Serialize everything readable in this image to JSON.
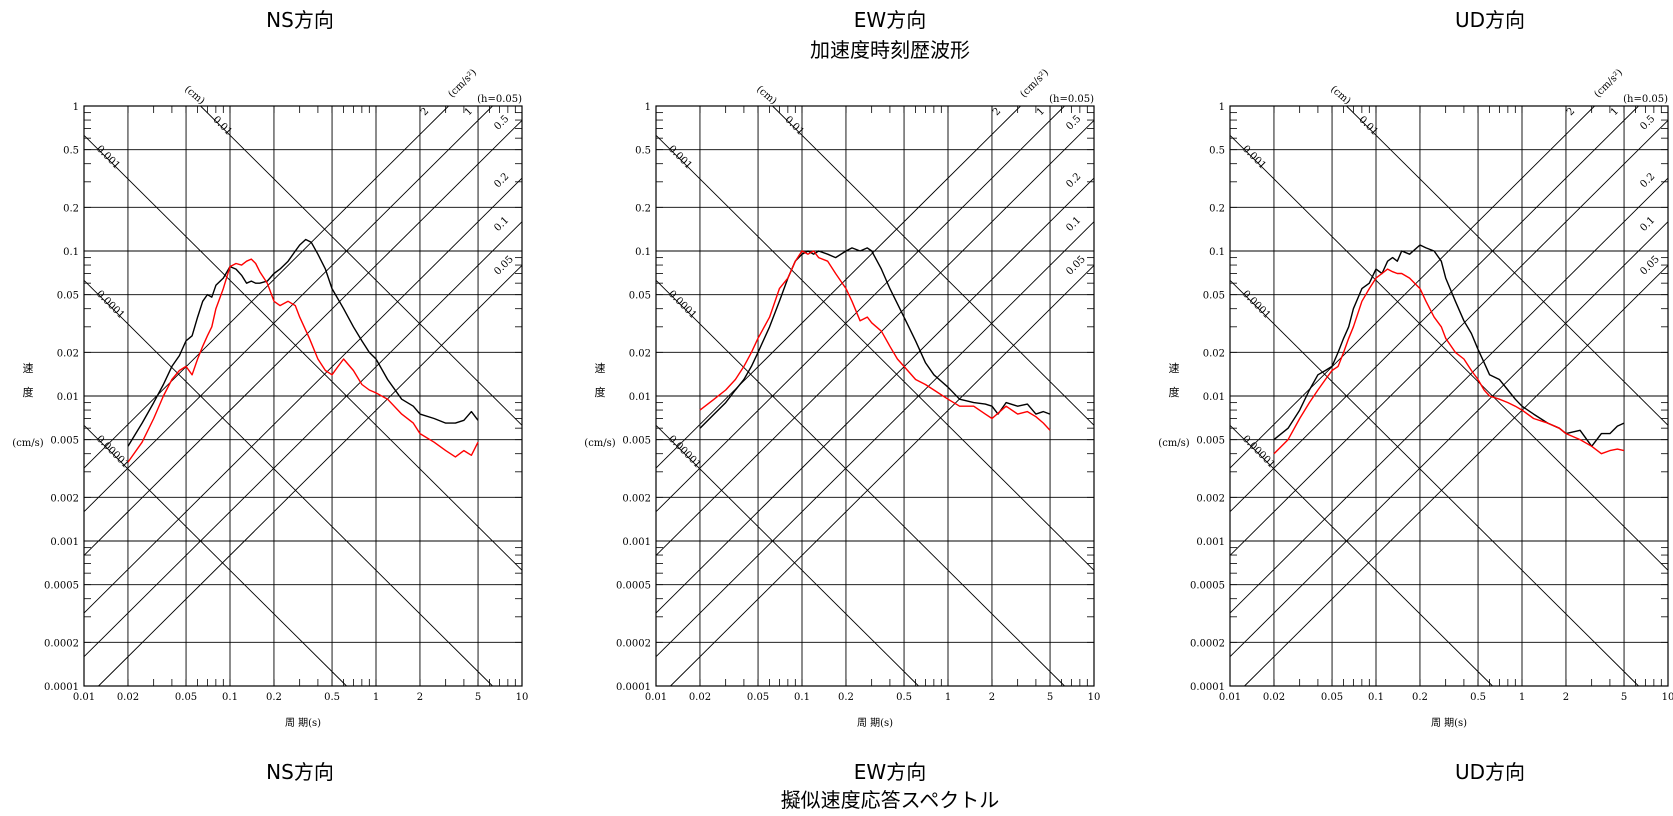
{
  "captions": {
    "top_ns": "NS方向",
    "top_ew": "EW方向",
    "top_ud": "UD方向",
    "top_center": "加速度時刻歴波形",
    "bottom_ns": "NS方向",
    "bottom_ew": "EW方向",
    "bottom_ud": "UD方向",
    "bottom_center": "擬似速度応答スペクトル"
  },
  "common": {
    "xlabel": "周 期(s)",
    "ylabel_chars": [
      "速",
      "度"
    ],
    "ylabel_unit": "(cm/s)",
    "disp_unit": "(cm)",
    "acc_unit": "(cm/s²)",
    "damping": "(h=0.05)",
    "xlim": [
      0.01,
      10
    ],
    "ylim": [
      0.0001,
      1
    ],
    "xtick_values": [
      0.01,
      0.02,
      0.05,
      0.1,
      0.2,
      0.5,
      1,
      2,
      5,
      10
    ],
    "xtick_labels": [
      "0.01",
      "0.02",
      "0.05",
      "0.1",
      "0.2",
      "0.5",
      "1",
      "2",
      "5",
      "10"
    ],
    "ytick_values": [
      1,
      0.5,
      0.2,
      0.1,
      0.05,
      0.02,
      0.01,
      0.005,
      0.002,
      0.001,
      0.0005,
      0.0002,
      0.0001
    ],
    "ytick_labels": [
      "1",
      "0.5",
      "0.2",
      "0.1",
      "0.05",
      "0.02",
      "0.01",
      "0.005",
      "0.002",
      "0.001",
      "0.0005",
      "0.0002",
      "0.0001"
    ],
    "disp_lines": [
      0.01,
      0.001,
      0.0001,
      1e-05
    ],
    "disp_labels": [
      "0.01",
      "0.001",
      "0.0001",
      "0.00001"
    ],
    "acc_lines": [
      2,
      1,
      0.5,
      0.2,
      0.1,
      0.05
    ],
    "acc_labels": [
      "2",
      "1",
      "0.5",
      "0.2",
      "0.1",
      "0.05"
    ]
  },
  "chart_data": [
    {
      "type": "line",
      "scale": "log-log tripartite",
      "xlim": [
        0.01,
        10
      ],
      "ylim": [
        0.0001,
        1
      ],
      "series": [
        {
          "color": "#000000",
          "x": [
            0.02,
            0.025,
            0.03,
            0.035,
            0.04,
            0.045,
            0.05,
            0.055,
            0.06,
            0.065,
            0.07,
            0.075,
            0.08,
            0.09,
            0.1,
            0.11,
            0.12,
            0.13,
            0.14,
            0.15,
            0.16,
            0.18,
            0.2,
            0.22,
            0.25,
            0.28,
            0.3,
            0.33,
            0.36,
            0.4,
            0.45,
            0.5,
            0.6,
            0.7,
            0.8,
            0.9,
            1.0,
            1.2,
            1.5,
            1.8,
            2,
            2.5,
            3,
            3.5,
            4,
            4.5,
            5
          ],
          "y": [
            0.0045,
            0.0065,
            0.009,
            0.012,
            0.016,
            0.019,
            0.024,
            0.026,
            0.035,
            0.045,
            0.05,
            0.048,
            0.058,
            0.065,
            0.078,
            0.075,
            0.068,
            0.06,
            0.062,
            0.06,
            0.06,
            0.062,
            0.07,
            0.075,
            0.085,
            0.1,
            0.11,
            0.12,
            0.115,
            0.095,
            0.075,
            0.055,
            0.04,
            0.03,
            0.024,
            0.02,
            0.018,
            0.013,
            0.0095,
            0.0085,
            0.0075,
            0.007,
            0.0065,
            0.0065,
            0.0068,
            0.0078,
            0.0068
          ]
        },
        {
          "color": "#ff0000",
          "x": [
            0.02,
            0.025,
            0.03,
            0.035,
            0.04,
            0.045,
            0.05,
            0.055,
            0.06,
            0.065,
            0.07,
            0.075,
            0.08,
            0.09,
            0.1,
            0.11,
            0.12,
            0.13,
            0.14,
            0.15,
            0.16,
            0.18,
            0.2,
            0.22,
            0.25,
            0.28,
            0.3,
            0.35,
            0.4,
            0.45,
            0.5,
            0.55,
            0.6,
            0.7,
            0.8,
            0.9,
            1.0,
            1.2,
            1.5,
            1.8,
            2,
            2.5,
            3,
            3.5,
            4,
            4.5,
            5
          ],
          "y": [
            0.0035,
            0.0048,
            0.007,
            0.01,
            0.013,
            0.015,
            0.016,
            0.014,
            0.018,
            0.022,
            0.026,
            0.03,
            0.04,
            0.055,
            0.078,
            0.082,
            0.08,
            0.085,
            0.088,
            0.082,
            0.072,
            0.06,
            0.045,
            0.042,
            0.045,
            0.042,
            0.035,
            0.025,
            0.018,
            0.015,
            0.014,
            0.016,
            0.018,
            0.015,
            0.012,
            0.011,
            0.0105,
            0.0095,
            0.0075,
            0.0065,
            0.0055,
            0.0048,
            0.0042,
            0.0038,
            0.0042,
            0.0039,
            0.0048
          ]
        }
      ]
    },
    {
      "type": "line",
      "scale": "log-log tripartite",
      "xlim": [
        0.01,
        10
      ],
      "ylim": [
        0.0001,
        1
      ],
      "series": [
        {
          "color": "#000000",
          "x": [
            0.02,
            0.025,
            0.03,
            0.035,
            0.04,
            0.045,
            0.05,
            0.06,
            0.07,
            0.08,
            0.09,
            0.1,
            0.11,
            0.12,
            0.13,
            0.15,
            0.17,
            0.2,
            0.22,
            0.25,
            0.28,
            0.3,
            0.35,
            0.4,
            0.5,
            0.6,
            0.7,
            0.8,
            1.0,
            1.2,
            1.5,
            1.8,
            2,
            2.2,
            2.5,
            3,
            3.5,
            4,
            4.5,
            5
          ],
          "y": [
            0.006,
            0.0075,
            0.009,
            0.011,
            0.013,
            0.016,
            0.02,
            0.03,
            0.045,
            0.065,
            0.085,
            0.095,
            0.1,
            0.095,
            0.1,
            0.095,
            0.09,
            0.1,
            0.105,
            0.1,
            0.105,
            0.1,
            0.075,
            0.055,
            0.035,
            0.024,
            0.017,
            0.014,
            0.0115,
            0.0095,
            0.009,
            0.0088,
            0.0085,
            0.0075,
            0.009,
            0.0085,
            0.0088,
            0.0075,
            0.0078,
            0.0075
          ]
        },
        {
          "color": "#ff0000",
          "x": [
            0.02,
            0.025,
            0.03,
            0.035,
            0.04,
            0.045,
            0.05,
            0.06,
            0.07,
            0.08,
            0.09,
            0.1,
            0.11,
            0.12,
            0.13,
            0.15,
            0.17,
            0.2,
            0.22,
            0.25,
            0.28,
            0.3,
            0.35,
            0.4,
            0.45,
            0.5,
            0.6,
            0.7,
            0.8,
            1.0,
            1.2,
            1.5,
            1.8,
            2,
            2.5,
            3,
            3.5,
            4,
            4.5,
            5
          ],
          "y": [
            0.008,
            0.0095,
            0.011,
            0.013,
            0.016,
            0.02,
            0.025,
            0.035,
            0.055,
            0.065,
            0.085,
            0.1,
            0.095,
            0.1,
            0.09,
            0.085,
            0.07,
            0.055,
            0.045,
            0.033,
            0.035,
            0.032,
            0.028,
            0.022,
            0.018,
            0.016,
            0.013,
            0.012,
            0.011,
            0.0095,
            0.0085,
            0.0085,
            0.0075,
            0.007,
            0.0085,
            0.0075,
            0.0078,
            0.0072,
            0.0065,
            0.0058
          ]
        }
      ]
    },
    {
      "type": "line",
      "scale": "log-log tripartite",
      "xlim": [
        0.01,
        10
      ],
      "ylim": [
        0.0001,
        1
      ],
      "series": [
        {
          "color": "#000000",
          "x": [
            0.02,
            0.025,
            0.03,
            0.035,
            0.04,
            0.045,
            0.05,
            0.055,
            0.06,
            0.065,
            0.07,
            0.08,
            0.09,
            0.1,
            0.11,
            0.12,
            0.13,
            0.14,
            0.15,
            0.17,
            0.2,
            0.22,
            0.25,
            0.28,
            0.3,
            0.35,
            0.4,
            0.45,
            0.5,
            0.55,
            0.6,
            0.7,
            0.8,
            0.9,
            1.0,
            1.2,
            1.5,
            1.8,
            2,
            2.5,
            3,
            3.5,
            4,
            4.5,
            5
          ],
          "y": [
            0.005,
            0.006,
            0.008,
            0.011,
            0.014,
            0.015,
            0.016,
            0.02,
            0.025,
            0.03,
            0.04,
            0.055,
            0.06,
            0.075,
            0.07,
            0.085,
            0.09,
            0.085,
            0.1,
            0.095,
            0.11,
            0.105,
            0.1,
            0.085,
            0.065,
            0.045,
            0.033,
            0.027,
            0.021,
            0.017,
            0.014,
            0.013,
            0.011,
            0.0095,
            0.0085,
            0.0075,
            0.0065,
            0.006,
            0.0055,
            0.0058,
            0.0045,
            0.0055,
            0.0055,
            0.0062,
            0.0065
          ]
        },
        {
          "color": "#ff0000",
          "x": [
            0.02,
            0.025,
            0.03,
            0.035,
            0.04,
            0.045,
            0.05,
            0.055,
            0.06,
            0.065,
            0.07,
            0.08,
            0.09,
            0.1,
            0.11,
            0.12,
            0.13,
            0.14,
            0.15,
            0.17,
            0.2,
            0.22,
            0.25,
            0.28,
            0.3,
            0.35,
            0.4,
            0.45,
            0.5,
            0.55,
            0.6,
            0.7,
            0.8,
            0.9,
            1.0,
            1.2,
            1.5,
            1.8,
            2,
            2.5,
            3,
            3.5,
            4,
            4.5,
            5
          ],
          "y": [
            0.004,
            0.005,
            0.007,
            0.009,
            0.011,
            0.013,
            0.015,
            0.016,
            0.02,
            0.025,
            0.03,
            0.045,
            0.055,
            0.065,
            0.07,
            0.075,
            0.072,
            0.07,
            0.07,
            0.065,
            0.055,
            0.045,
            0.035,
            0.03,
            0.025,
            0.02,
            0.018,
            0.015,
            0.013,
            0.011,
            0.01,
            0.0095,
            0.009,
            0.0085,
            0.008,
            0.007,
            0.0065,
            0.006,
            0.0055,
            0.005,
            0.0045,
            0.004,
            0.0042,
            0.0043,
            0.0042
          ]
        }
      ]
    }
  ]
}
